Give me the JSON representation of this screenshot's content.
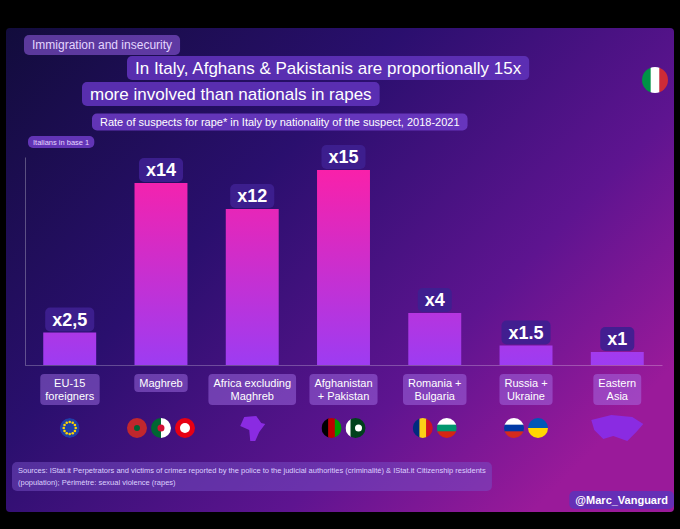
{
  "chart_data": {
    "type": "bar",
    "header": "Immigration and insecurity",
    "title": [
      "In Italy, Afghans & Pakistanis are proportionally 15x",
      "more involved than nationals in rapes"
    ],
    "subtitle": "Rate of suspects for rape* in Italy by nationality of the suspect, 2018-2021",
    "annotation": "Italians in base 1",
    "categories": [
      "EU-15\nforeigners",
      "Maghreb",
      "Africa excluding\nMaghreb",
      "Afghanistan\n+ Pakistan",
      "Romania +\nBulgaria",
      "Russia +\nUkraine",
      "Eastern\nAsia"
    ],
    "values": [
      2.5,
      14,
      12,
      15,
      4,
      1.5,
      1
    ],
    "value_labels": [
      "x2,5",
      "x14",
      "x12",
      "x15",
      "x4",
      "x1.5",
      "x1"
    ],
    "data_labels": true,
    "color": "#ff1fa5",
    "ylim": [
      0,
      16
    ],
    "grid": false,
    "tick_labels": false,
    "source": [
      "Sources: IStat.it Perpetrators and victims of crimes reported by the police to the judicial authorities (criminalité) & IStat.it Citizenship residents",
      "(population); Périmètre: sexual violence (rapes)"
    ],
    "credit": "@Marc_Vanguard"
  }
}
